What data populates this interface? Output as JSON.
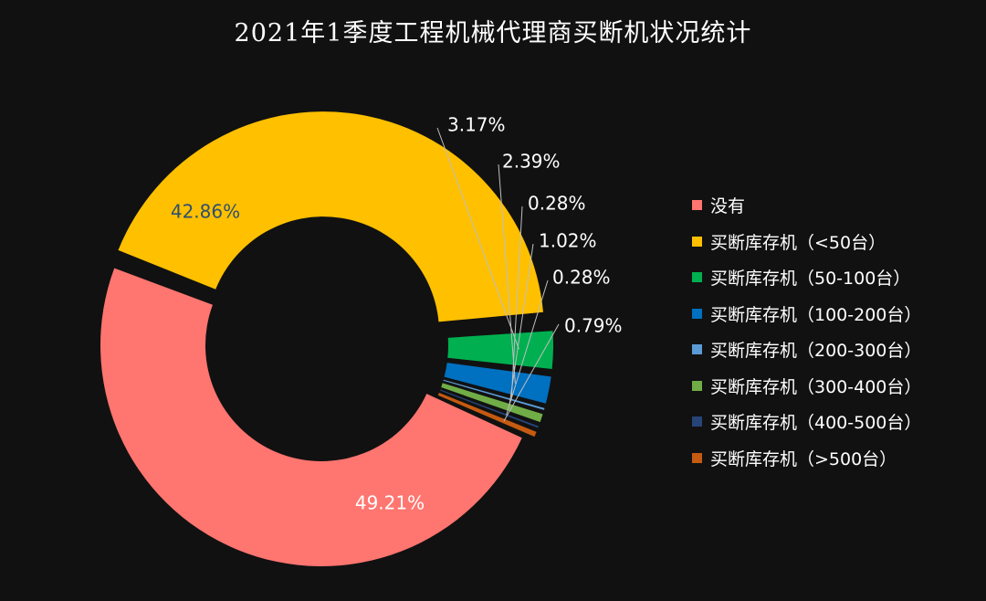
{
  "chart_data": {
    "type": "pie",
    "title": "2021年1季度工程机械代理商买断机状况统计",
    "donut": true,
    "legend_position": "right",
    "series": [
      {
        "name": "没有",
        "value": 49.21,
        "label": "49.21%",
        "color": "#ff7570"
      },
      {
        "name": "买断库存机（<50台）",
        "value": 42.86,
        "label": "42.86%",
        "color": "#ffc000"
      },
      {
        "name": "买断库存机（50-100台）",
        "value": 3.17,
        "label": "3.17%",
        "color": "#00b050"
      },
      {
        "name": "买断库存机（100-200台）",
        "value": 2.39,
        "label": "2.39%",
        "color": "#0070c0"
      },
      {
        "name": "买断库存机（200-300台）",
        "value": 0.28,
        "label": "0.28%",
        "color": "#5b9bd5"
      },
      {
        "name": "买断库存机（300-400台）",
        "value": 1.02,
        "label": "1.02%",
        "color": "#70ad47"
      },
      {
        "name": "买断库存机（400-500台）",
        "value": 0.28,
        "label": "0.28%",
        "color": "#264478"
      },
      {
        "name": "买断库存机（>500台）",
        "value": 0.79,
        "label": "0.79%",
        "color": "#c55a11"
      }
    ]
  }
}
